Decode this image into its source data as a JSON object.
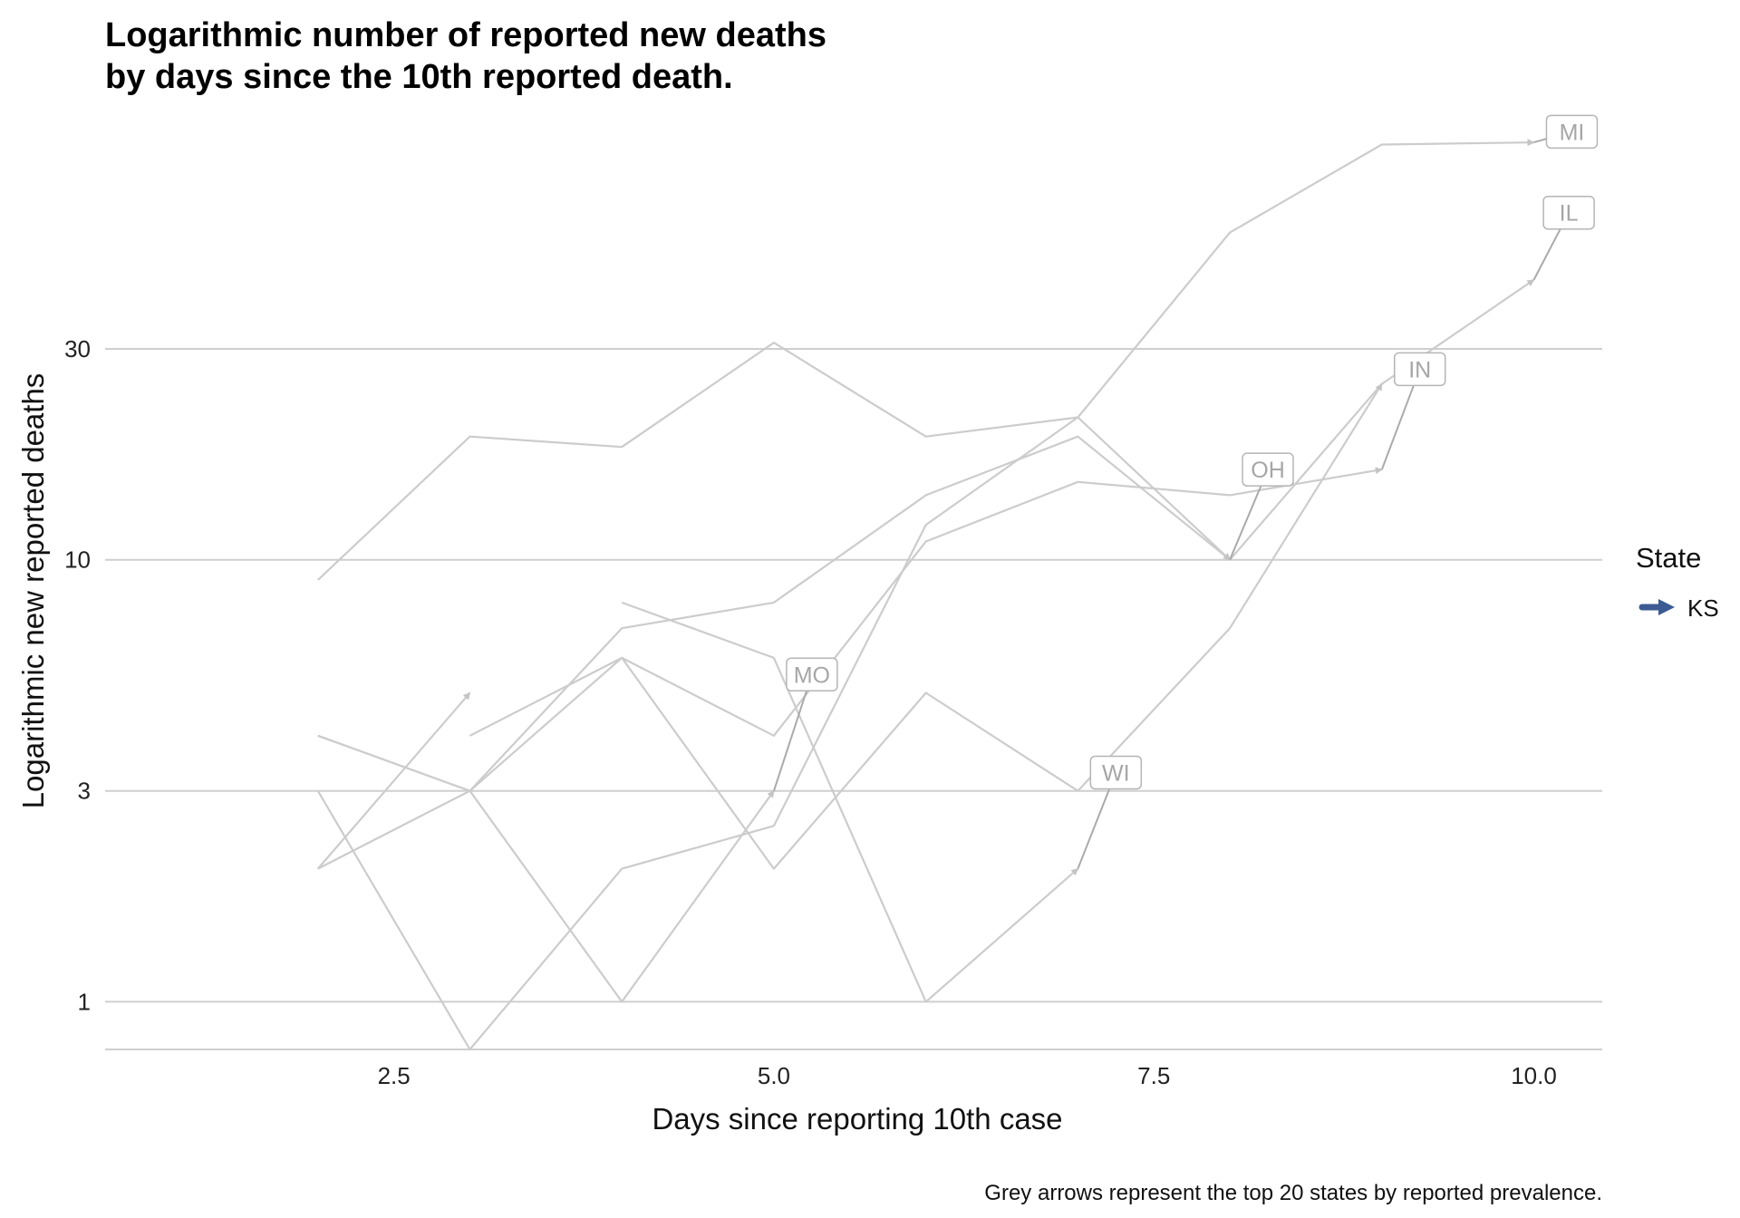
{
  "chart_data": {
    "type": "line",
    "title_lines": [
      "Logarithmic number of reported new deaths",
      "by days since the 10th reported death."
    ],
    "xlabel": "Days since reporting 10th case",
    "ylabel": "Logarithmic new reported deaths",
    "caption": "Grey arrows represent the top 20 states by reported prevalence.",
    "x_scale": "linear",
    "y_scale": "log10",
    "xlim": [
      0.6,
      10.45
    ],
    "ylim": [
      0.78,
      100
    ],
    "x_ticks": [
      2.5,
      5.0,
      7.5,
      10.0
    ],
    "x_tick_labels": [
      "2.5",
      "5.0",
      "7.5",
      "10.0"
    ],
    "y_ticks": [
      1,
      3,
      10,
      30
    ],
    "y_tick_labels": [
      "1",
      "3",
      "10",
      "30"
    ],
    "grid": "horizontal major lines only",
    "legend": {
      "title": "State",
      "position": "right",
      "items": [
        {
          "label": "KS",
          "color": "#3b5b92"
        }
      ]
    },
    "colors": {
      "grey_series": "#cccccc",
      "label_segment": "#aaaaaa",
      "grid": "#cfcfcf",
      "label_text": "#a6a6a6",
      "highlight": "#3b5b92"
    },
    "series": [
      {
        "name": "MI",
        "x": [
          2,
          3,
          4,
          5,
          6,
          7,
          8,
          9,
          10
        ],
        "y": [
          9,
          19,
          18,
          31,
          19,
          21,
          55,
          87,
          88
        ]
      },
      {
        "name": "IL",
        "x": [
          2,
          3,
          4,
          5,
          6,
          7,
          8,
          9,
          10
        ],
        "y": [
          4,
          3,
          7,
          8,
          14,
          19,
          10,
          25,
          43
        ]
      },
      {
        "name": "IN",
        "x": [
          2,
          3,
          4,
          5,
          6,
          7,
          8,
          9
        ],
        "y": [
          2,
          3,
          6,
          4,
          11,
          15,
          14,
          16
        ]
      },
      {
        "name": "OH",
        "x": [
          2,
          3,
          4,
          5,
          6,
          7,
          8
        ],
        "y": [
          3,
          0.78,
          2,
          2.5,
          12,
          21,
          10
        ]
      },
      {
        "name": "MO",
        "x": [
          2,
          3,
          4,
          5
        ],
        "y": [
          4,
          3,
          1,
          3
        ]
      },
      {
        "name": "WI",
        "x": [
          4,
          5,
          6,
          7
        ],
        "y": [
          8,
          6,
          1,
          2
        ]
      },
      {
        "name": "",
        "x": [
          2,
          3
        ],
        "y": [
          2,
          5
        ]
      },
      {
        "name": "",
        "x": [
          3,
          4,
          5,
          6,
          7,
          8,
          9
        ],
        "y": [
          4,
          6,
          2,
          5,
          3,
          7,
          25
        ]
      }
    ],
    "labels": [
      {
        "text": "MI",
        "from": [
          10,
          88
        ],
        "to": [
          10.25,
          93
        ]
      },
      {
        "text": "IL",
        "from": [
          10,
          43
        ],
        "to": [
          10.23,
          61
        ]
      },
      {
        "text": "IN",
        "from": [
          9,
          16
        ],
        "to": [
          9.25,
          27
        ]
      },
      {
        "text": "OH",
        "from": [
          8,
          10
        ],
        "to": [
          8.25,
          16
        ]
      },
      {
        "text": "MO",
        "from": [
          5,
          3
        ],
        "to": [
          5.25,
          5.5
        ]
      },
      {
        "text": "WI",
        "from": [
          7,
          2
        ],
        "to": [
          7.25,
          3.3
        ]
      }
    ]
  }
}
